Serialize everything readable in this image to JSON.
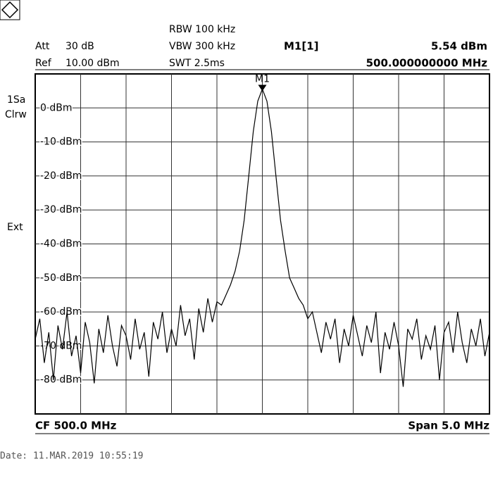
{
  "header": {
    "att_label": "Att",
    "att": "30 dB",
    "ref_label": "Ref",
    "ref": "10.00 dBm",
    "rbw": "RBW 100 kHz",
    "vbw": "VBW 300 kHz",
    "swt": "SWT 2.5ms"
  },
  "side": {
    "trace_mode": "1Sa",
    "detector": "Clrw",
    "trigger": "Ext"
  },
  "footer": {
    "center": "CF 500.0 MHz",
    "span": "Span 5.0 MHz"
  },
  "date": "Date: 11.MAR.2019  10:55:19",
  "chart_data": {
    "type": "line",
    "color": "#000000",
    "grid": true,
    "xlim": [
      497.5,
      502.5
    ],
    "ylim": [
      -90,
      10
    ],
    "yticks": [
      {
        "value": 0,
        "label": "0 dBm"
      },
      {
        "value": -10,
        "label": "-10 dBm"
      },
      {
        "value": -20,
        "label": "-20 dBm"
      },
      {
        "value": -30,
        "label": "-30 dBm"
      },
      {
        "value": -40,
        "label": "-40 dBm"
      },
      {
        "value": -50,
        "label": "-50 dBm"
      },
      {
        "value": -60,
        "label": "-60 dBm"
      },
      {
        "value": -70,
        "label": "-70 dBm"
      },
      {
        "value": -80,
        "label": "-80 dBm"
      }
    ],
    "marker": {
      "name": "M1",
      "readout": "M1[1]",
      "x": 500,
      "y": 5.54,
      "y_label": "5.54 dBm",
      "x_label": "500.000000000 MHz"
    },
    "x": [
      497.5,
      497.55,
      497.6,
      497.65,
      497.7,
      497.75,
      497.8,
      497.85,
      497.9,
      497.95,
      498,
      498.05,
      498.1,
      498.15,
      498.2,
      498.25,
      498.3,
      498.35,
      498.4,
      498.45,
      498.5,
      498.55,
      498.6,
      498.65,
      498.7,
      498.75,
      498.8,
      498.85,
      498.9,
      498.95,
      499,
      499.05,
      499.1,
      499.15,
      499.2,
      499.25,
      499.3,
      499.35,
      499.4,
      499.45,
      499.5,
      499.55,
      499.6,
      499.65,
      499.7,
      499.75,
      499.8,
      499.85,
      499.9,
      499.95,
      500,
      500.05,
      500.1,
      500.15,
      500.2,
      500.25,
      500.3,
      500.35,
      500.4,
      500.45,
      500.5,
      500.55,
      500.6,
      500.65,
      500.7,
      500.75,
      500.8,
      500.85,
      500.9,
      500.95,
      501,
      501.05,
      501.1,
      501.15,
      501.2,
      501.25,
      501.3,
      501.35,
      501.4,
      501.45,
      501.5,
      501.55,
      501.6,
      501.65,
      501.7,
      501.75,
      501.8,
      501.85,
      501.9,
      501.95,
      502,
      502.05,
      502.1,
      502.15,
      502.2,
      502.25,
      502.3,
      502.35,
      502.4,
      502.45,
      502.5
    ],
    "series": [
      {
        "name": "1Sa",
        "values": [
          -68,
          -62,
          -75,
          -66,
          -80,
          -64,
          -71,
          -60,
          -73,
          -67,
          -78,
          -63,
          -69,
          -81,
          -65,
          -72,
          -61,
          -70,
          -76,
          -64,
          -67,
          -74,
          -62,
          -71,
          -66,
          -79,
          -63,
          -68,
          -60,
          -72,
          -65,
          -70,
          -58,
          -67,
          -62,
          -74,
          -59,
          -66,
          -56,
          -63,
          -57,
          -58,
          -55,
          -52,
          -48,
          -42,
          -33,
          -20,
          -7,
          2,
          5.54,
          2,
          -7,
          -20,
          -33,
          -42,
          -50,
          -53,
          -56,
          -58,
          -62,
          -60,
          -66,
          -72,
          -63,
          -68,
          -62,
          -75,
          -65,
          -70,
          -61,
          -67,
          -73,
          -64,
          -69,
          -60,
          -78,
          -66,
          -71,
          -63,
          -70,
          -82,
          -65,
          -68,
          -62,
          -74,
          -67,
          -71,
          -64,
          -80,
          -66,
          -63,
          -72,
          -60,
          -69,
          -75,
          -65,
          -70,
          -62,
          -73,
          -66
        ]
      }
    ]
  }
}
